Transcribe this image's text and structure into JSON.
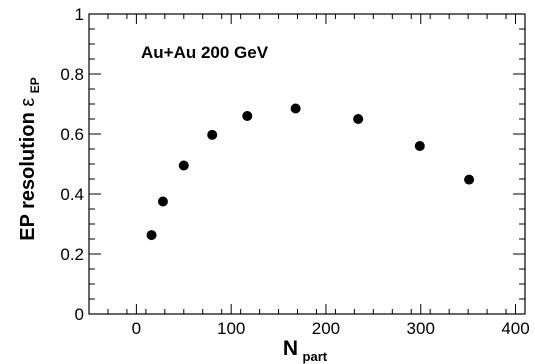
{
  "chart_data": {
    "type": "scatter",
    "xlabel": "N",
    "xlabel_sub": "part",
    "ylabel": "EP resolution ",
    "ylabel_symbol": "ε",
    "ylabel_sub": "EP",
    "annotation": "Au+Au 200 GeV",
    "xlim": [
      -50,
      410
    ],
    "ylim": [
      0,
      1
    ],
    "xticks": [
      0,
      100,
      200,
      300,
      400
    ],
    "yticks": [
      0,
      0.2,
      0.4,
      0.6,
      0.8,
      1
    ],
    "xtick_labels": [
      "0",
      "100",
      "200",
      "300",
      "400"
    ],
    "ytick_labels": [
      "0",
      "0.2",
      "0.4",
      "0.6",
      "0.8",
      "1"
    ],
    "grid": false,
    "series": [
      {
        "marker_color": "#000000",
        "x": [
          16,
          28,
          50,
          80,
          117,
          168,
          234,
          299,
          351
        ],
        "y": [
          0.263,
          0.375,
          0.495,
          0.597,
          0.66,
          0.685,
          0.65,
          0.56,
          0.448
        ]
      }
    ]
  }
}
